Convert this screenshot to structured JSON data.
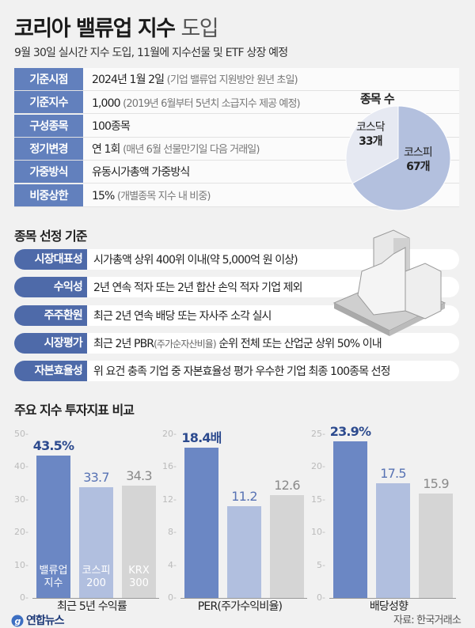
{
  "header": {
    "title_bold": "코리아 밸류업 지수",
    "title_light": "도입",
    "subtitle": "9월 30일 실시간 지수 도입, 11월에 지수선물 및 ETF 상장 예정"
  },
  "info_rows": [
    {
      "label": "기준시점",
      "value": "2024년 1월 2일",
      "note": "(기업 밸류업 지원방안 원년 초일)"
    },
    {
      "label": "기준지수",
      "value": "1,000",
      "note": "(2019년 6월부터 5년치 소급지수 제공 예정)"
    },
    {
      "label": "구성종목",
      "value": "100종목",
      "note": ""
    },
    {
      "label": "정기변경",
      "value": "연 1회",
      "note": "(매년 6월 선물만기일 다음 거래일)"
    },
    {
      "label": "가중방식",
      "value": "유동시가총액 가중방식",
      "note": ""
    },
    {
      "label": "비중상한",
      "value": "15%",
      "note": "(개별종목 지수 내 비중)"
    }
  ],
  "pie": {
    "title": "종목 수",
    "slices": [
      {
        "name": "코스피",
        "value": 67,
        "label": "67개",
        "color": "#b3c0de"
      },
      {
        "name": "코스닥",
        "value": 33,
        "label": "33개",
        "color": "#e6e9f2"
      }
    ]
  },
  "criteria": {
    "title": "종목 선정 기준",
    "rows": [
      {
        "label": "시장대표성",
        "value": "시가총액 상위 400위 이내(약 5,000억 원 이상)"
      },
      {
        "label": "수익성",
        "value": "2년 연속 적자 또는 2년 합산 손익 적자 기업 제외"
      },
      {
        "label": "주주환원",
        "value": "최근 2년 연속 배당 또는 자사주 소각 실시"
      },
      {
        "label": "시장평가",
        "value": "최근 2년 PBR",
        "note": "(주가순자산비율)",
        "value2": " 순위 전체 또는 산업군 상위 50% 이내"
      },
      {
        "label": "자본효율성",
        "value": "위 요건 충족 기업 중 자본효율성 평가 우수한 기업 최종 100종목 선정"
      }
    ]
  },
  "section3_title": "주요 지수 투자지표 비교",
  "chart_data": [
    {
      "type": "bar",
      "title": "최근 5년 수익률",
      "categories": [
        "밸류업 지수",
        "코스피 200",
        "KRX 300"
      ],
      "values": [
        43.5,
        33.7,
        34.3
      ],
      "labels": [
        "43.5%",
        "33.7",
        "34.3"
      ],
      "ylim": [
        0,
        50
      ],
      "yticks": [
        0,
        10,
        20,
        30,
        40,
        50
      ]
    },
    {
      "type": "bar",
      "title": "PER(주가수익비율)",
      "categories": [
        "밸류업 지수",
        "코스피 200",
        "KRX 300"
      ],
      "values": [
        18.4,
        11.2,
        12.6
      ],
      "labels": [
        "18.4배",
        "11.2",
        "12.6"
      ],
      "ylim": [
        0,
        20
      ],
      "yticks": [
        0,
        4,
        8,
        12,
        16,
        20
      ]
    },
    {
      "type": "bar",
      "title": "배당성향",
      "categories": [
        "밸류업 지수",
        "코스피 200",
        "KRX 300"
      ],
      "values": [
        23.9,
        17.5,
        15.9
      ],
      "labels": [
        "23.9%",
        "17.5",
        "15.9"
      ],
      "ylim": [
        0,
        25
      ],
      "yticks": [
        0,
        5,
        10,
        15,
        20,
        25
      ]
    }
  ],
  "bar_in_labels": [
    [
      "밸류업",
      "지수"
    ],
    [
      "코스피",
      "200"
    ],
    [
      "KRX",
      "300"
    ]
  ],
  "colors": {
    "bars": [
      "#6b87c4",
      "#b1bfdf",
      "#d5d5d5"
    ],
    "value_labels": [
      "#2c4a8e",
      "#5873b4",
      "#8a8a8a"
    ]
  },
  "footer": {
    "logo": "연합뉴스",
    "source": "자료: 한국거래소"
  }
}
